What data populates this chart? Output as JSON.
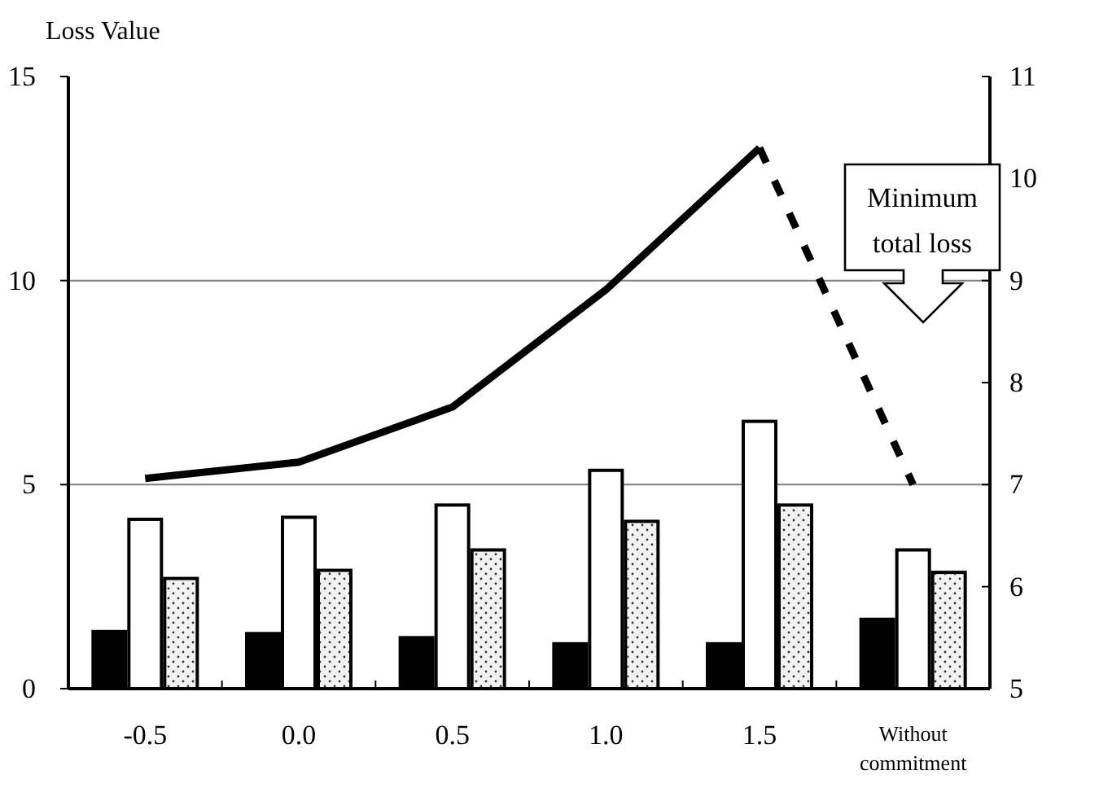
{
  "chart_data": {
    "type": "bar",
    "ylabel": "Loss Value",
    "categories": [
      "-0.5",
      "0.0",
      "0.5",
      "1.0",
      "1.5",
      "Without commitment"
    ],
    "series": [
      {
        "color": "#000000",
        "values": [
          1.4,
          1.35,
          1.25,
          1.1,
          1.1,
          1.7
        ]
      },
      {
        "color": "#ffffff",
        "values": [
          4.15,
          4.2,
          4.5,
          5.35,
          6.55,
          3.4
        ]
      },
      {
        "color": "#f2f2f2",
        "values": [
          2.7,
          2.9,
          3.4,
          4.1,
          4.5,
          2.85
        ]
      },
      {
        "type": "line",
        "axis": "y2",
        "color": "#000000",
        "line_style": "solid",
        "values": [
          7.06,
          7.22,
          7.76,
          8.91,
          10.3,
          null
        ]
      },
      {
        "type": "line",
        "axis": "y2",
        "color": "#000000",
        "line_style": "dashed",
        "values": [
          null,
          null,
          null,
          null,
          10.3,
          7.0
        ]
      }
    ],
    "ylim": [
      0,
      15
    ],
    "yticks": [
      0,
      5,
      10,
      15
    ],
    "y2lim": [
      5,
      11
    ],
    "y2ticks": [
      5,
      6,
      7,
      8,
      9,
      10,
      11
    ],
    "grid": "y",
    "marker": "none",
    "annotations": [
      "Minimum total loss"
    ]
  }
}
